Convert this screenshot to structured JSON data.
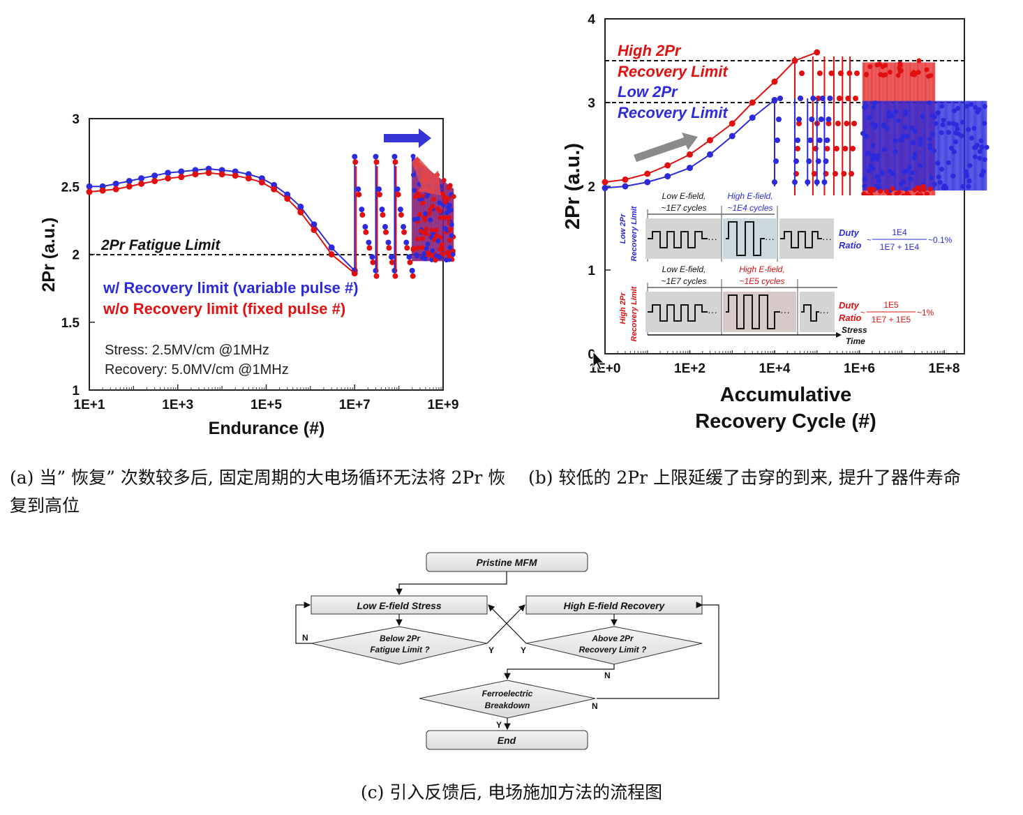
{
  "captions": {
    "a": "(a) 当” 恢复” 次数较多后, 固定周期的大电场循环无法将 2Pr 恢复到高位",
    "b": "(b) 较低的 2Pr 上限延缓了击穿的到来, 提升了器件寿命",
    "c": "(c) 引入反馈后, 电场施加方法的流程图"
  },
  "chart_data": [
    {
      "type": "line",
      "panel": "a",
      "xlabel": "Endurance (#)",
      "ylabel": "2Pr (a.u.)",
      "x_scale": "log",
      "xlim": [
        10,
        1000000000
      ],
      "ylim": [
        1,
        3
      ],
      "x_ticks": [
        "1E+1",
        "1E+3",
        "1E+5",
        "1E+7",
        "1E+9"
      ],
      "y_ticks": [
        "1",
        "1.5",
        "2",
        "2.5",
        "3"
      ],
      "reference_line": {
        "y": 2,
        "label": "2Pr Fatigue Limit"
      },
      "annotations": [
        "Stress: 2.5MV/cm @1MHz",
        "Recovery: 5.0MV/cm @1MHz"
      ],
      "series": [
        {
          "name": "w/ Recovery limit (variable pulse #)",
          "color": "#2b2bdc",
          "x": [
            10,
            20,
            40,
            80,
            150,
            300,
            600,
            1200,
            2500,
            5000,
            10000,
            20000,
            40000,
            80000,
            150000,
            300000,
            600000,
            1200000,
            3000000,
            10000000
          ],
          "y": [
            2.5,
            2.5,
            2.52,
            2.54,
            2.56,
            2.58,
            2.6,
            2.61,
            2.62,
            2.63,
            2.62,
            2.61,
            2.59,
            2.56,
            2.51,
            2.44,
            2.35,
            2.22,
            2.05,
            1.88
          ]
        },
        {
          "name": "w/o Recovery limit (fixed pulse #)",
          "color": "#e01010",
          "x": [
            10,
            20,
            40,
            80,
            150,
            300,
            600,
            1200,
            2500,
            5000,
            10000,
            20000,
            40000,
            80000,
            150000,
            300000,
            600000,
            1200000,
            3000000,
            10000000
          ],
          "y": [
            2.46,
            2.47,
            2.48,
            2.5,
            2.52,
            2.54,
            2.56,
            2.57,
            2.59,
            2.6,
            2.59,
            2.58,
            2.56,
            2.53,
            2.48,
            2.41,
            2.31,
            2.18,
            2.0,
            1.86
          ]
        }
      ]
    },
    {
      "type": "line",
      "panel": "b",
      "xlabel": "Accumulative Recovery Cycle (#)",
      "ylabel": "2Pr (a.u.)",
      "x_scale": "log",
      "xlim": [
        1,
        300000000
      ],
      "ylim": [
        0,
        4
      ],
      "x_ticks": [
        "1E+0",
        "1E+2",
        "1E+4",
        "1E+6",
        "1E+8"
      ],
      "y_ticks": [
        "0",
        "1",
        "2",
        "3",
        "4"
      ],
      "reference_lines": [
        {
          "y": 3.5,
          "label": "High 2Pr Recovery Limit",
          "color": "#e01010"
        },
        {
          "y": 3.0,
          "label": "Low 2Pr Recovery Limit",
          "color": "#2b2bdc"
        }
      ],
      "series": [
        {
          "name": "High 2Pr Recovery Limit",
          "color": "#e01010",
          "x": [
            1,
            3,
            10,
            30,
            100,
            300,
            1000,
            3000,
            10000,
            30000,
            100000
          ],
          "y": [
            2.05,
            2.08,
            2.15,
            2.25,
            2.38,
            2.55,
            2.75,
            3.0,
            3.25,
            3.5,
            3.6
          ]
        },
        {
          "name": "Low 2Pr Recovery Limit",
          "color": "#2b2bdc",
          "x": [
            1,
            3,
            10,
            30,
            100,
            300,
            1000,
            3000,
            10000
          ],
          "y": [
            1.98,
            2.0,
            2.05,
            2.12,
            2.22,
            2.38,
            2.6,
            2.82,
            3.03
          ]
        }
      ]
    }
  ],
  "fig_b_inset": {
    "row1_label": "Low 2Pr Recovery Limit",
    "row1_seg1": "Low E-field, ~1E7 cycles",
    "row1_seg2": "High E-field, ~1E4 cycles",
    "row1_duty": "Duty Ratio",
    "row1_num": "1E4",
    "row1_den": "1E7 + 1E4",
    "row1_approx": "~0.1%",
    "row2_label": "High 2Pr Recovery Limit",
    "row2_seg1": "Low E-field, ~1E7 cycles",
    "row2_seg2": "High E-field, ~1E5 cycles",
    "row2_duty": "Duty Ratio",
    "row2_num": "1E5",
    "row2_den": "1E7 + 1E5",
    "row2_approx": "~1%",
    "axis_stress": "Stress",
    "axis_time": "Time"
  },
  "flowchart": {
    "pristine": "Pristine MFM",
    "low_stress": "Low E-field Stress",
    "high_recovery": "High E-field Recovery",
    "below_fatigue_1": "Below 2Pr",
    "below_fatigue_2": "Fatigue Limit ?",
    "above_recovery_1": "Above 2Pr",
    "above_recovery_2": "Recovery Limit ?",
    "breakdown_1": "Ferroelectric",
    "breakdown_2": "Breakdown",
    "end": "End",
    "n": "N",
    "y": "Y"
  }
}
